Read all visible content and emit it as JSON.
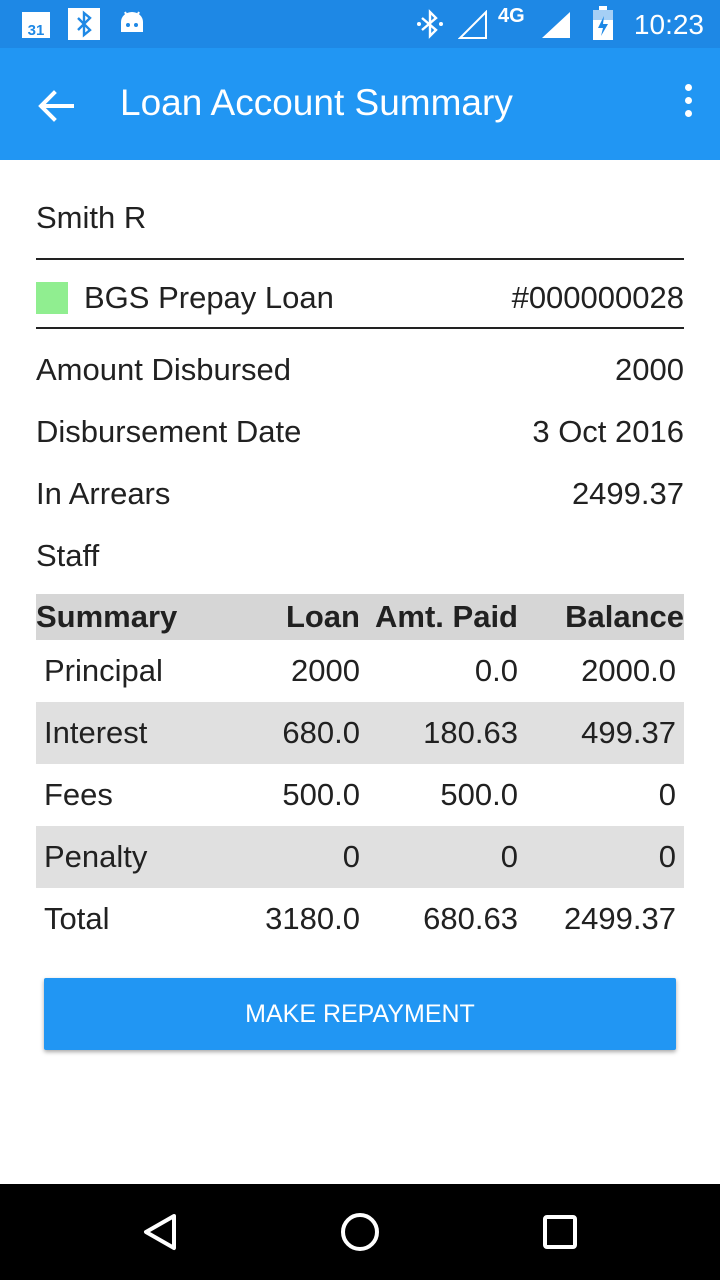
{
  "status_bar": {
    "time": "10:23",
    "network": "4G",
    "calendar_day": "31",
    "icons": [
      "calendar-icon",
      "bluetooth-icon",
      "android-icon",
      "bluetooth-icon",
      "signal-empty-icon",
      "signal-full-icon",
      "battery-charging-icon"
    ]
  },
  "app_bar": {
    "title": "Loan Account Summary",
    "color": "#2196f3",
    "icons": [
      "back-arrow-icon",
      "more-vert-icon"
    ]
  },
  "client": {
    "name": "Smith R"
  },
  "loan": {
    "product": "BGS Prepay Loan",
    "account_number": "#000000028",
    "status_color": "#90ee90"
  },
  "details": [
    {
      "label": "Amount Disbursed",
      "value": "2000"
    },
    {
      "label": "Disbursement Date",
      "value": "3 Oct 2016"
    },
    {
      "label": "In Arrears",
      "value": "2499.37"
    },
    {
      "label": "Staff",
      "value": ""
    }
  ],
  "summary_table": {
    "headers": [
      "Summary",
      "Loan",
      "Amt. Paid",
      "Balance"
    ],
    "rows": [
      [
        "Principal",
        "2000",
        "0.0",
        "2000.0"
      ],
      [
        "Interest",
        "680.0",
        "180.63",
        "499.37"
      ],
      [
        "Fees",
        "500.0",
        "500.0",
        "0"
      ],
      [
        "Penalty",
        "0",
        "0",
        "0"
      ],
      [
        "Total",
        "3180.0",
        "680.63",
        "2499.37"
      ]
    ]
  },
  "actions": {
    "make_repayment": "MAKE REPAYMENT"
  },
  "nav_bar": {
    "icons": [
      "back-triangle-icon",
      "home-circle-icon",
      "recents-square-icon"
    ]
  }
}
